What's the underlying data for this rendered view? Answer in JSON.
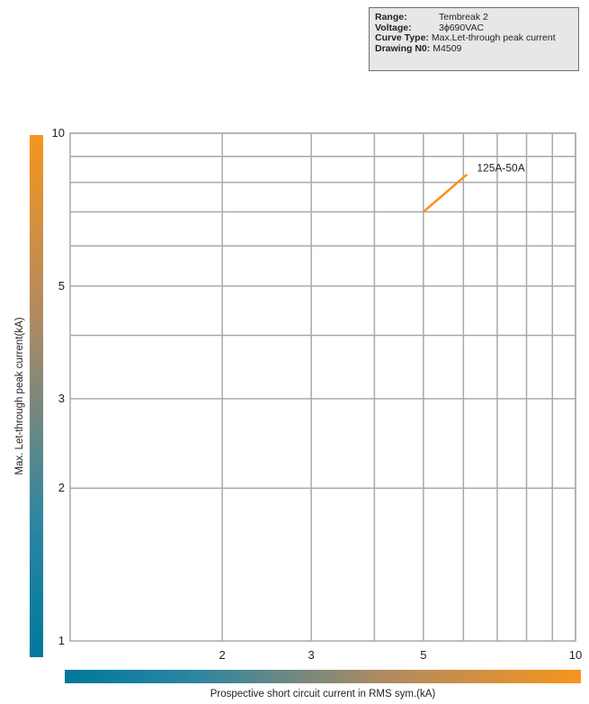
{
  "info": {
    "range_label": "Range:",
    "range_value": "Tembreak 2",
    "voltage_label": "Voltage:",
    "voltage_value": "3ϕ690VAC",
    "curve_label": "Curve Type:",
    "curve_value": "Max.Let-through peak current",
    "drawing_label": "Drawing N0:",
    "drawing_value": "M4509"
  },
  "chart_data": {
    "type": "line",
    "xlabel": "Prospective short circuit current in RMS sym.(kA)",
    "ylabel": "Max. Let-through peak current(kA)",
    "x_scale": "log",
    "y_scale": "log",
    "xlim": [
      1,
      10
    ],
    "ylim": [
      1,
      10
    ],
    "x_ticks": [
      2,
      3,
      5,
      10
    ],
    "y_ticks": [
      1,
      2,
      3,
      5,
      10
    ],
    "x_grid": [
      2,
      3,
      4,
      5,
      6,
      7,
      8,
      9,
      10
    ],
    "y_grid": [
      2,
      3,
      4,
      5,
      6,
      7,
      8,
      9,
      10
    ],
    "grid": true,
    "series": [
      {
        "name": "125A-50A",
        "color": "#f7941d",
        "x": [
          5,
          6.1
        ],
        "y": [
          7.0,
          8.3
        ]
      }
    ]
  }
}
